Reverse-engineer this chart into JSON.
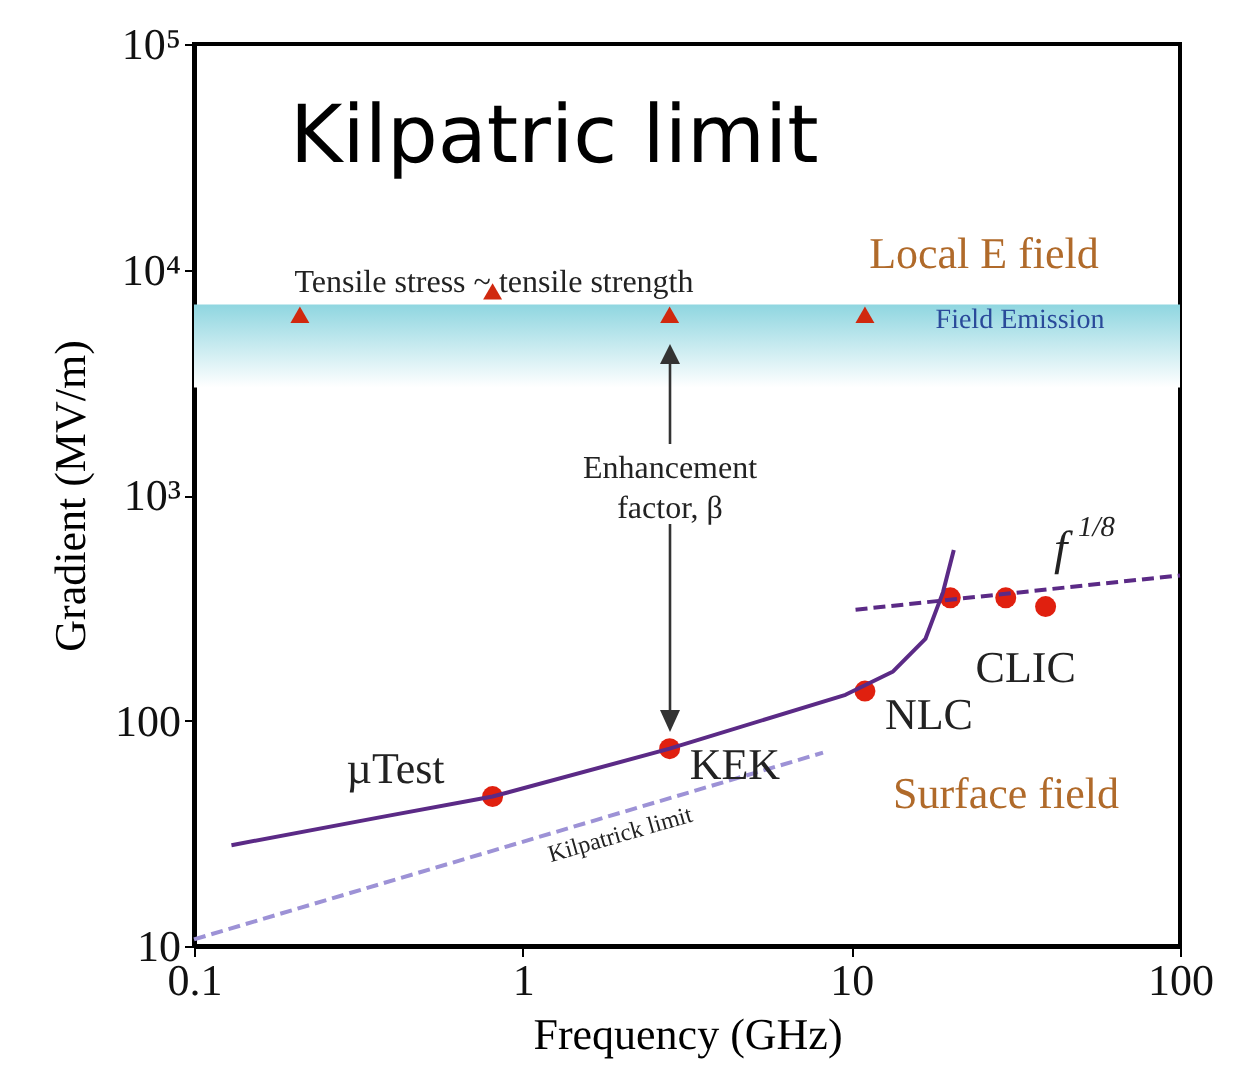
{
  "chart_data": {
    "type": "scatter",
    "title": "Kilpatric limit",
    "xlabel": "Frequency (GHz)",
    "ylabel": "Gradient (MV/m)",
    "log": "xy",
    "grid": false,
    "xlim": [
      0.1,
      100
    ],
    "xticks": [
      0.1,
      1,
      10,
      100
    ],
    "ylim": [
      10,
      100000
    ],
    "yticks": [
      10,
      100,
      {
        "value": 1000,
        "label": "10³"
      },
      {
        "value": 10000,
        "label": "10⁴"
      },
      {
        "value": 100000,
        "label": "10⁵"
      }
    ],
    "series": [
      {
        "marker": "triangle",
        "color": "#d0290f",
        "x": [
          0.21,
          0.81,
          2.8,
          11
        ],
        "values": [
          6300,
          8000,
          6300,
          6300
        ]
      },
      {
        "marker": "circle",
        "color": "#e0200f",
        "x": [
          0.81,
          2.8,
          11,
          20,
          29.5,
          39
        ],
        "values": [
          46,
          75,
          135,
          350,
          350,
          320
        ]
      },
      {
        "type": "line",
        "line_style": "solid",
        "color": "#5b2a86",
        "x": [
          0.13,
          0.36,
          0.81,
          2.8,
          9.6,
          13.4,
          16.8,
          19,
          20.5
        ],
        "values": [
          28,
          37,
          46,
          75,
          130,
          165,
          230,
          370,
          570
        ]
      },
      {
        "type": "line",
        "line_style": "dashed",
        "color": "#5b2a86",
        "x": [
          10.3,
          100
        ],
        "values": [
          310,
          440
        ]
      },
      {
        "type": "line",
        "line_style": "dashed",
        "color": "#9d92d6",
        "x": [
          0.1,
          8.2
        ],
        "values": [
          10.7,
          72
        ]
      }
    ],
    "bands": [
      {
        "axis": "y",
        "from": 3000,
        "to": 7000,
        "label": "Field Emission",
        "color": "#8fd6e0"
      }
    ],
    "annotations": [
      "Tensile stress ~ tensile strength",
      "Enhancement factor, β",
      "Local E field",
      "Surface field",
      {
        "text": "µTest",
        "x": 0.81,
        "y": 46
      },
      {
        "text": "KEK",
        "x": 2.8,
        "y": 75
      },
      {
        "text": "NLC",
        "x": 11,
        "y": 135
      },
      {
        "text": "CLIC",
        "x": 29.5,
        "y": 350
      },
      "Kilpatrick limit",
      "f$^{1/8}$"
    ]
  }
}
